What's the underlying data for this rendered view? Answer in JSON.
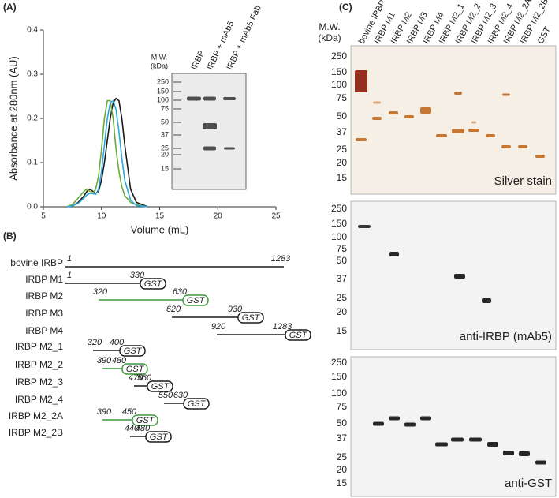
{
  "panel_labels": [
    "(A)",
    "(B)",
    "(C)"
  ],
  "chart_data": {
    "type": "line",
    "xlabel": "Volume (mL)",
    "ylabel": "Absorbance at 280nm (AU)",
    "x": [
      7,
      7.5,
      8,
      8.5,
      8.75,
      9,
      9.25,
      9.5,
      9.75,
      10,
      10.25,
      10.5,
      10.75,
      11,
      11.25,
      11.5,
      11.75,
      12,
      12.5,
      13,
      14
    ],
    "series": [
      {
        "color": "#1a1a1a",
        "values": [
          0,
          0.002,
          0.01,
          0.025,
          0.035,
          0.04,
          0.035,
          0.03,
          0.035,
          0.06,
          0.1,
          0.15,
          0.2,
          0.235,
          0.245,
          0.24,
          0.2,
          0.14,
          0.04,
          0.01,
          0
        ]
      },
      {
        "color": "#6aaa3a",
        "values": [
          0,
          0.005,
          0.02,
          0.035,
          0.04,
          0.035,
          0.03,
          0.04,
          0.07,
          0.13,
          0.2,
          0.24,
          0.24,
          0.2,
          0.13,
          0.08,
          0.045,
          0.025,
          0.01,
          0.005,
          0
        ]
      },
      {
        "color": "#2aa7dc",
        "values": [
          0,
          0.002,
          0.008,
          0.02,
          0.027,
          0.03,
          0.03,
          0.028,
          0.04,
          0.08,
          0.14,
          0.2,
          0.235,
          0.24,
          0.22,
          0.17,
          0.11,
          0.06,
          0.015,
          0.003,
          0
        ]
      }
    ],
    "xlim": [
      5,
      25
    ],
    "xticks": [
      5,
      10,
      15,
      20,
      25
    ],
    "ylim": [
      0,
      0.4
    ],
    "yticks": [
      {
        "value": 0,
        "label": "0.0"
      },
      {
        "value": 0.1,
        "label": "0.1"
      },
      {
        "value": 0.2,
        "label": "0.2"
      },
      {
        "value": 0.3,
        "label": "0.3"
      },
      {
        "value": 0.4,
        "label": "0.4"
      }
    ]
  },
  "inset_gel": {
    "mw_title": [
      "M.W.",
      "(kDa)"
    ],
    "mw_markers": [
      "250",
      "150",
      "100",
      "75",
      "50",
      "37",
      "25",
      "20",
      "15"
    ],
    "lanes": [
      {
        "label": "IRBP",
        "color": "#1a1a1a"
      },
      {
        "label": "IRBP + mAb5",
        "color": "#6aaa3a"
      },
      {
        "label": "IRBP + mAb5 Fab",
        "color": "#2aa7dc"
      }
    ]
  },
  "constructs": [
    {
      "name": "bovine IRBP",
      "color": "#1a1a1a",
      "start": 1,
      "end": 1283
    },
    {
      "name": "IRBP M1",
      "color": "#1a1a1a",
      "start": 1,
      "end": 330,
      "tag": "GST"
    },
    {
      "name": "IRBP M2",
      "color": "#3a9a3a",
      "start": 320,
      "end": 630,
      "tag": "GST"
    },
    {
      "name": "IRBP M3",
      "color": "#1a1a1a",
      "start": 620,
      "end": 930,
      "tag": "GST"
    },
    {
      "name": "IRBP M4",
      "color": "#1a1a1a",
      "start": 920,
      "end": 1283,
      "tag": "GST"
    },
    {
      "name": "IRBP M2_1",
      "color": "#1a1a1a",
      "start": 320,
      "end": 400,
      "tag": "GST"
    },
    {
      "name": "IRBP M2_2",
      "color": "#3a9a3a",
      "start": 390,
      "end": 480,
      "tag": "GST"
    },
    {
      "name": "IRBP M2_3",
      "color": "#1a1a1a",
      "start": 470,
      "end": 560,
      "tag": "GST"
    },
    {
      "name": "IRBP M2_4",
      "color": "#1a1a1a",
      "start": 550,
      "end": 630,
      "tag": "GST"
    },
    {
      "name": "IRBP M2_2A",
      "color": "#3a9a3a",
      "start": 390,
      "end": 450,
      "tag": "GST"
    },
    {
      "name": "IRBP M2_2B",
      "color": "#1a1a1a",
      "start": 440,
      "end": 480,
      "tag": "GST"
    }
  ],
  "blots": {
    "mw_title": [
      "M.W.",
      "(kDa)"
    ],
    "lanes": [
      {
        "label": "bovine IRBP",
        "color": "#1a1a1a"
      },
      {
        "label": "IRBP M1",
        "color": "#1a1a1a"
      },
      {
        "label": "IRBP M2",
        "color": "#3a9a3a"
      },
      {
        "label": "IRBP M3",
        "color": "#1a1a1a"
      },
      {
        "label": "IRBP M4",
        "color": "#1a1a1a"
      },
      {
        "label": "IRBP M2_1",
        "color": "#1a1a1a"
      },
      {
        "label": "IRBP M2_2",
        "color": "#3a9a3a"
      },
      {
        "label": "IRBP M2_3",
        "color": "#1a1a1a"
      },
      {
        "label": "IRBP M2_4",
        "color": "#1a1a1a"
      },
      {
        "label": "IRBP M2_2A",
        "color": "#3a9a3a"
      },
      {
        "label": "IRBP M2_2B",
        "color": "#1a1a1a"
      },
      {
        "label": "GST",
        "color": "#1a1a1a"
      }
    ],
    "panels": [
      {
        "label": "Silver stain",
        "mw_markers": [
          "250",
          "150",
          "100",
          "75",
          "50",
          "37",
          "25",
          "20",
          "15"
        ]
      },
      {
        "label": "anti-IRBP (mAb5)",
        "mw_markers": [
          "250",
          "150",
          "100",
          "75",
          "50",
          "37",
          "25",
          "20",
          "15"
        ]
      },
      {
        "label": "anti-GST",
        "mw_markers": [
          "250",
          "150",
          "100",
          "75",
          "50",
          "37",
          "25",
          "20",
          "15"
        ]
      }
    ]
  }
}
